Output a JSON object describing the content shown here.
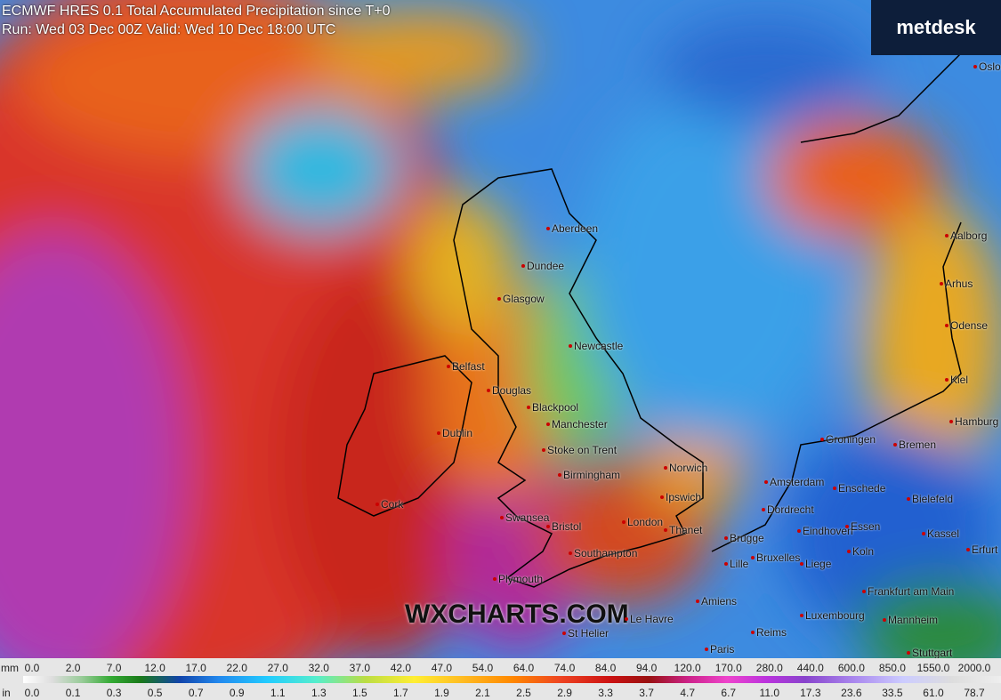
{
  "header": {
    "model": "ECMWF HRES 0.1",
    "title": "Total Accumulated Precipitation since T+0",
    "run": "Run: Wed 03 Dec 00Z Valid: Wed 10 Dec 18:00 UTC"
  },
  "logo": "metdesk",
  "watermark": "WXCHARTS.COM",
  "cities": [
    "Oslo",
    "Aalborg",
    "Aberdeen",
    "Dundee",
    "Arhus",
    "Glasgow",
    "Odense",
    "Newcastle",
    "Belfast",
    "Kiel",
    "Douglas",
    "Blackpool",
    "Hamburg",
    "Manchester",
    "Dublin",
    "Groningen",
    "Bremen",
    "Stoke on Trent",
    "Norwich",
    "Birmingham",
    "Amsterdam",
    "Enschede",
    "Ipswich",
    "Bielefeld",
    "Cork",
    "Dordrecht",
    "Swansea",
    "London",
    "Bristol",
    "Eindhoven",
    "Essen",
    "Thanet",
    "Kassel",
    "Brugge",
    "Erfurt",
    "Southampton",
    "Koln",
    "Bruxelles",
    "Lille",
    "Liege",
    "Plymouth",
    "Frankfurt am Main",
    "Amiens",
    "Luxembourg",
    "Le Havre",
    "Mannheim",
    "St Helier",
    "Reims",
    "Paris",
    "Stuttgart"
  ],
  "legend": {
    "mm_label": "mm",
    "mm_values": [
      "0.0",
      "2.0",
      "7.0",
      "12.0",
      "17.0",
      "22.0",
      "27.0",
      "32.0",
      "37.0",
      "42.0",
      "47.0",
      "54.0",
      "64.0",
      "74.0",
      "84.0",
      "94.0",
      "120.0",
      "170.0",
      "280.0",
      "440.0",
      "600.0",
      "850.0",
      "1550.0",
      "2000.0"
    ],
    "in_label": "in",
    "in_values": [
      "0.0",
      "0.1",
      "0.3",
      "0.5",
      "0.7",
      "0.9",
      "1.1",
      "1.3",
      "1.5",
      "1.7",
      "1.9",
      "2.1",
      "2.5",
      "2.9",
      "3.3",
      "3.7",
      "4.7",
      "6.7",
      "11.0",
      "17.3",
      "23.6",
      "33.5",
      "61.0",
      "78.7"
    ]
  }
}
